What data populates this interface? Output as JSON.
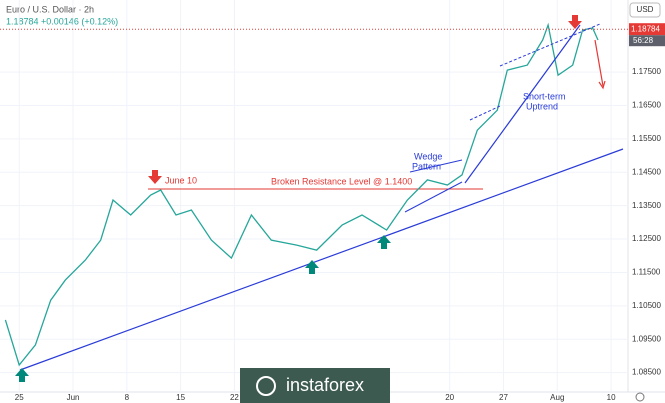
{
  "header": {
    "title": "Euro / U.S. Dollar · 2h",
    "quote": "1.18784 +0.00146 (+0.12%)",
    "currency": "USD"
  },
  "chart_data": {
    "type": "line",
    "x": [
      -1.8,
      0,
      2.1,
      4.1,
      6,
      8.6,
      10.6,
      12.2,
      14.5,
      17.1,
      18.4,
      20.4,
      22.4,
      25,
      27.6,
      30.2,
      32.8,
      36.1,
      38.7,
      42,
      44.6,
      47.8,
      50.5,
      53.1,
      55.7,
      57.6,
      59.6,
      62.2,
      63.5,
      66.1,
      68.1,
      68.8,
      70.1,
      72,
      73.3,
      74.6,
      75.3
    ],
    "values": [
      1.1008,
      1.0873,
      1.0933,
      1.1067,
      1.1127,
      1.1187,
      1.1247,
      1.1367,
      1.1322,
      1.1382,
      1.1397,
      1.1322,
      1.1337,
      1.1247,
      1.1193,
      1.1322,
      1.1247,
      1.1232,
      1.1217,
      1.1292,
      1.1322,
      1.1277,
      1.1367,
      1.1427,
      1.1412,
      1.1442,
      1.1576,
      1.1636,
      1.1756,
      1.1771,
      1.1846,
      1.1891,
      1.1741,
      1.1771,
      1.1876,
      1.1882,
      1.1846
    ],
    "color": "#26a69a",
    "last_price": {
      "value": 1.18784,
      "label": "1.18784"
    },
    "countdown": "56:28",
    "resistance": 1.14,
    "annotations": {
      "june": "June 10",
      "resistance": "Broken Resistance Level @ 1.1400",
      "wedge": [
        "Wedge",
        "Pattern"
      ],
      "uptrend": [
        "Short-term",
        "Uptrend"
      ]
    },
    "xlim": [
      -2.5,
      79.2
    ],
    "ylim": [
      1.0798,
      1.1888
    ],
    "xticks": [
      {
        "value": 0,
        "label": "25"
      },
      {
        "value": 7,
        "label": "Jun"
      },
      {
        "value": 14,
        "label": "8"
      },
      {
        "value": 21,
        "label": "15"
      },
      {
        "value": 28,
        "label": "22"
      },
      {
        "value": 56,
        "label": "20"
      },
      {
        "value": 63,
        "label": "27"
      },
      {
        "value": 70,
        "label": "Aug"
      },
      {
        "value": 77,
        "label": "10"
      }
    ],
    "yticks": [
      {
        "value": 1.175,
        "label": "1.17500"
      },
      {
        "value": 1.165,
        "label": "1.16500"
      },
      {
        "value": 1.155,
        "label": "1.15500"
      },
      {
        "value": 1.145,
        "label": "1.14500"
      },
      {
        "value": 1.135,
        "label": "1.13500"
      },
      {
        "value": 1.125,
        "label": "1.12500"
      },
      {
        "value": 1.115,
        "label": "1.11500"
      },
      {
        "value": 1.105,
        "label": "1.10500"
      },
      {
        "value": 1.095,
        "label": "1.09500"
      },
      {
        "value": 1.085,
        "label": "1.08500"
      }
    ]
  },
  "watermark": "instaforex"
}
